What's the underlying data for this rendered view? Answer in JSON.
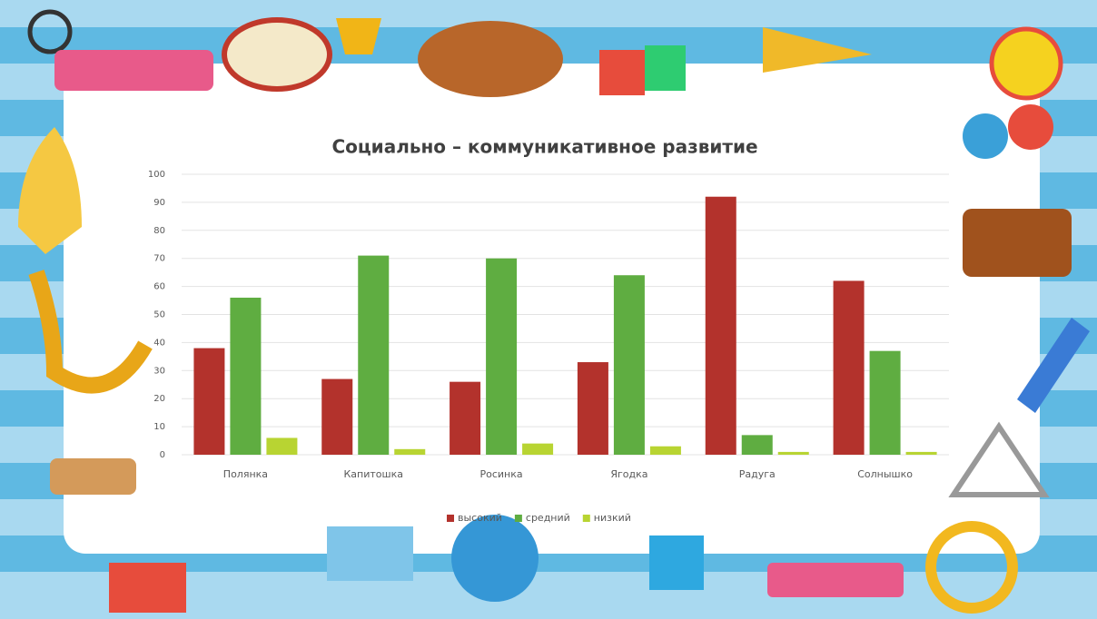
{
  "chart_data": {
    "type": "bar",
    "title": "Социально – коммуникативное развитие",
    "categories": [
      "Полянка",
      "Капитошка",
      "Росинка",
      "Ягодка",
      "Радуга",
      "Солнышко"
    ],
    "series": [
      {
        "name": "высокий",
        "color": "#b3322c",
        "values": [
          38,
          27,
          26,
          33,
          92,
          62
        ]
      },
      {
        "name": "средний",
        "color": "#5fad41",
        "values": [
          56,
          71,
          70,
          64,
          7,
          37
        ]
      },
      {
        "name": "низкий",
        "color": "#b8d432",
        "values": [
          6,
          2,
          4,
          3,
          1,
          1
        ]
      }
    ],
    "ylim": [
      0,
      100
    ],
    "yticks": [
      0,
      10,
      20,
      30,
      40,
      50,
      60,
      70,
      80,
      90,
      100
    ],
    "grid": true,
    "legend": "bottom"
  }
}
